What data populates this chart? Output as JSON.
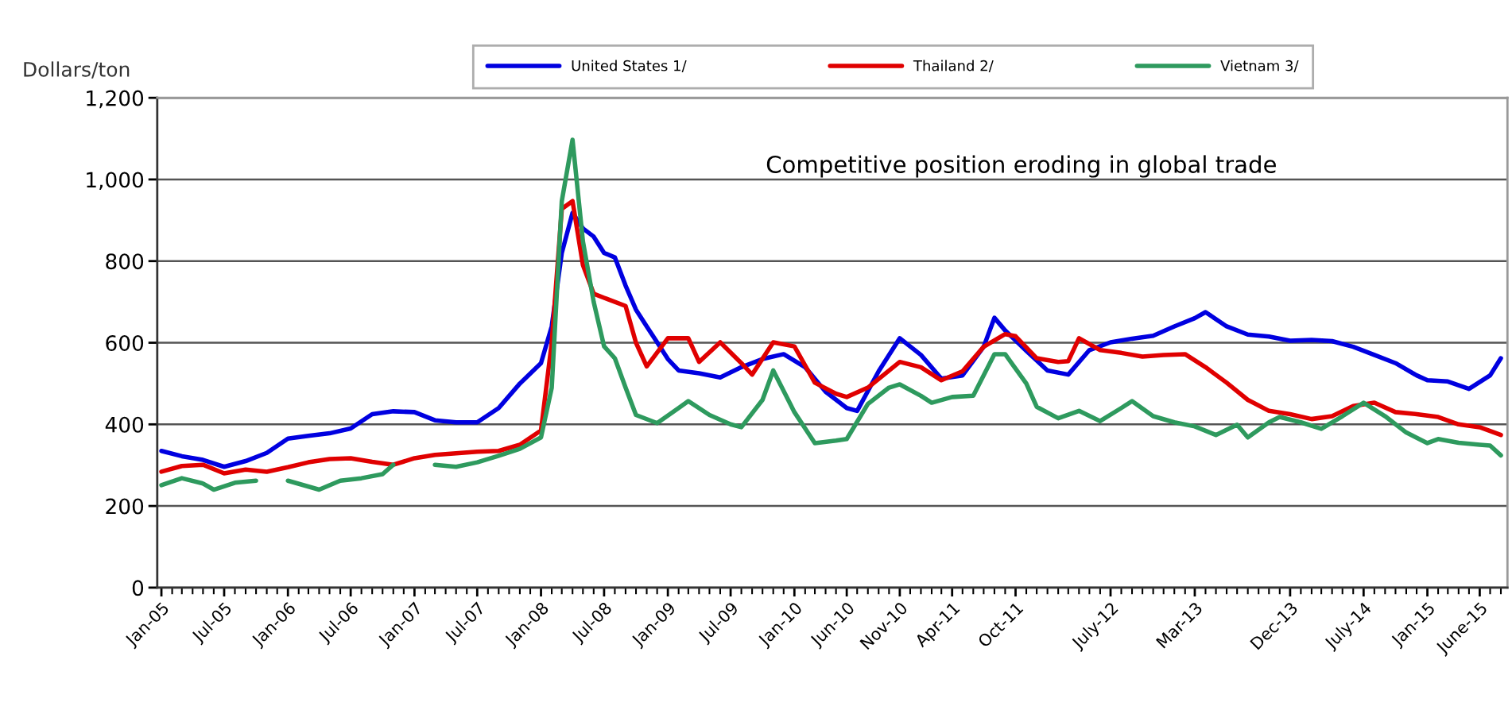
{
  "chart_data": {
    "type": "line",
    "ylabel": "Dollars/ton",
    "annotations": [
      "Competitive position eroding in global trade"
    ],
    "xlim": [
      "2004-12-20",
      "2015-08-20"
    ],
    "xticks": [
      {
        "value": "2005-01",
        "label": "Jan-05"
      },
      {
        "value": "2005-07",
        "label": "Jul-05"
      },
      {
        "value": "2006-01",
        "label": "Jan-06"
      },
      {
        "value": "2006-07",
        "label": "Jul-06"
      },
      {
        "value": "2007-01",
        "label": "Jan-07"
      },
      {
        "value": "2007-07",
        "label": "Jul-07"
      },
      {
        "value": "2008-01",
        "label": "Jan-08"
      },
      {
        "value": "2008-07",
        "label": "Jul-08"
      },
      {
        "value": "2009-01",
        "label": "Jan-09"
      },
      {
        "value": "2009-07",
        "label": "Jul-09"
      },
      {
        "value": "2010-01",
        "label": "Jan-10"
      },
      {
        "value": "2010-06",
        "label": "Jun-10"
      },
      {
        "value": "2010-11",
        "label": "Nov-10"
      },
      {
        "value": "2011-04",
        "label": "Apr-11"
      },
      {
        "value": "2011-10",
        "label": "Oct-11"
      },
      {
        "value": "2012-07",
        "label": "July-12"
      },
      {
        "value": "2013-03",
        "label": "Mar-13"
      },
      {
        "value": "2013-12",
        "label": "Dec-13"
      },
      {
        "value": "2014-07",
        "label": "July-14"
      },
      {
        "value": "2015-01",
        "label": "Jan-15"
      },
      {
        "value": "2015-06",
        "label": "June-15"
      }
    ],
    "ylim": [
      0,
      1200
    ],
    "yticks": [
      0,
      200,
      400,
      600,
      800,
      {
        "value": 1000,
        "label": "1,000"
      },
      {
        "value": 1200,
        "label": "1,200"
      }
    ],
    "grid": "y",
    "legend": "top",
    "marker": "none",
    "line_style": "solid",
    "series": [
      {
        "name": "United States 1/",
        "color": "#0000e0",
        "x": [
          "2005-01",
          "2005-03",
          "2005-05",
          "2005-07",
          "2005-09",
          "2005-11",
          "2006-01",
          "2006-03",
          "2006-05",
          "2006-07",
          "2006-09",
          "2006-11",
          "2007-01",
          "2007-03",
          "2007-05",
          "2007-07",
          "2007-09",
          "2007-11",
          "2008-01",
          "2008-02",
          "2008-03",
          "2008-04",
          "2008-05",
          "2008-06",
          "2008-07",
          "2008-08",
          "2008-09",
          "2008-10",
          "2008-11",
          "2008-12",
          "2009-01",
          "2009-02",
          "2009-04",
          "2009-06",
          "2009-08",
          "2009-10",
          "2009-12",
          "2010-02",
          "2010-04",
          "2010-06",
          "2010-07",
          "2010-09",
          "2010-11",
          "2011-01",
          "2011-03",
          "2011-05",
          "2011-07",
          "2011-08",
          "2011-09",
          "2011-11",
          "2012-01",
          "2012-03",
          "2012-05",
          "2012-07",
          "2012-09",
          "2012-11",
          "2013-01",
          "2013-03",
          "2013-04",
          "2013-06",
          "2013-08",
          "2013-10",
          "2013-12",
          "2014-02",
          "2014-04",
          "2014-06",
          "2014-08",
          "2014-10",
          "2014-12",
          "2015-01",
          "2015-03",
          "2015-05",
          "2015-07",
          "2015-08"
        ],
        "values": [
          335,
          322,
          313,
          296,
          310,
          330,
          365,
          372,
          378,
          390,
          425,
          432,
          430,
          410,
          405,
          405,
          440,
          500,
          550,
          640,
          820,
          918,
          880,
          860,
          820,
          809,
          740,
          681,
          640,
          601,
          560,
          532,
          525,
          515,
          540,
          560,
          572,
          540,
          480,
          440,
          433,
          530,
          611,
          570,
          512,
          520,
          590,
          661,
          630,
          580,
          532,
          522,
          582,
          601,
          610,
          617,
          640,
          660,
          675,
          640,
          620,
          615,
          605,
          607,
          604,
          590,
          570,
          550,
          520,
          508,
          505,
          487,
          520,
          562
        ]
      },
      {
        "name": "Thailand 2/",
        "color": "#e00000",
        "x": [
          "2005-01",
          "2005-03",
          "2005-05",
          "2005-07",
          "2005-09",
          "2005-11",
          "2006-01",
          "2006-03",
          "2006-05",
          "2006-07",
          "2006-09",
          "2006-11",
          "2007-01",
          "2007-03",
          "2007-05",
          "2007-07",
          "2007-09",
          "2007-11",
          "2008-01",
          "2008-02",
          "2008-03",
          "2008-04",
          "2008-05",
          "2008-06",
          "2008-07",
          "2008-09",
          "2008-10",
          "2008-11",
          "2009-01",
          "2009-03",
          "2009-04",
          "2009-06",
          "2009-08",
          "2009-09",
          "2009-11",
          "2010-01",
          "2010-03",
          "2010-05",
          "2010-06",
          "2010-08",
          "2010-11",
          "2011-01",
          "2011-03",
          "2011-05",
          "2011-07",
          "2011-09",
          "2011-10",
          "2011-12",
          "2012-02",
          "2012-03",
          "2012-04",
          "2012-06",
          "2012-08",
          "2012-10",
          "2012-12",
          "2013-02",
          "2013-04",
          "2013-06",
          "2013-08",
          "2013-10",
          "2013-12",
          "2014-02",
          "2014-04",
          "2014-06",
          "2014-08",
          "2014-10",
          "2014-12",
          "2015-02",
          "2015-04",
          "2015-06",
          "2015-08"
        ],
        "values": [
          284,
          298,
          301,
          280,
          289,
          284,
          295,
          307,
          315,
          317,
          308,
          301,
          317,
          325,
          329,
          333,
          335,
          350,
          385,
          600,
          928,
          947,
          790,
          720,
          710,
          690,
          600,
          542,
          611,
          611,
          553,
          601,
          550,
          522,
          601,
          591,
          502,
          475,
          467,
          490,
          553,
          540,
          508,
          530,
          590,
          621,
          616,
          562,
          553,
          555,
          611,
          582,
          575,
          566,
          570,
          572,
          540,
          502,
          460,
          433,
          425,
          413,
          420,
          445,
          453,
          430,
          425,
          418,
          400,
          393,
          374
        ]
      },
      {
        "name": "Vietnam 3/",
        "color": "#2e9a5e",
        "x": [
          "2005-01",
          "2005-03",
          "2005-05",
          "2005-06",
          "2005-08",
          "2005-10",
          "2005-11",
          "2006-01",
          "2006-04",
          "2006-06",
          "2006-08",
          "2006-10",
          "2006-11",
          "2007-01",
          "2007-03",
          "2007-05",
          "2007-07",
          "2007-09",
          "2007-11",
          "2008-01",
          "2008-02",
          "2008-03",
          "2008-04",
          "2008-05",
          "2008-06",
          "2008-07",
          "2008-08",
          "2008-09",
          "2008-10",
          "2008-12",
          "2009-02",
          "2009-03",
          "2009-05",
          "2009-07",
          "2009-08",
          "2009-10",
          "2009-11",
          "2010-01",
          "2010-03",
          "2010-05",
          "2010-06",
          "2010-08",
          "2010-10",
          "2010-11",
          "2011-01",
          "2011-02",
          "2011-04",
          "2011-06",
          "2011-08",
          "2011-09",
          "2011-11",
          "2011-12",
          "2012-02",
          "2012-04",
          "2012-06",
          "2012-08",
          "2012-09",
          "2012-11",
          "2013-01",
          "2013-03",
          "2013-05",
          "2013-07",
          "2013-08",
          "2013-10",
          "2013-11",
          "2014-01",
          "2014-03",
          "2014-05",
          "2014-07",
          "2014-09",
          "2014-11",
          "2015-01",
          "2015-02",
          "2015-04",
          "2015-06",
          "2015-07",
          "2015-08"
        ],
        "values": [
          251,
          268,
          255,
          240,
          257,
          262,
          null,
          262,
          240,
          262,
          268,
          278,
          301,
          null,
          301,
          296,
          307,
          323,
          340,
          368,
          490,
          947,
          1097,
          848,
          700,
          591,
          562,
          490,
          423,
          403,
          440,
          457,
          423,
          400,
          393,
          460,
          532,
          430,
          354,
          360,
          364,
          450,
          490,
          498,
          470,
          453,
          467,
          470,
          572,
          572,
          500,
          443,
          415,
          433,
          408,
          440,
          457,
          420,
          405,
          395,
          374,
          399,
          368,
          405,
          418,
          405,
          389,
          420,
          453,
          420,
          380,
          354,
          364,
          355,
          350,
          348,
          324
        ]
      }
    ]
  }
}
